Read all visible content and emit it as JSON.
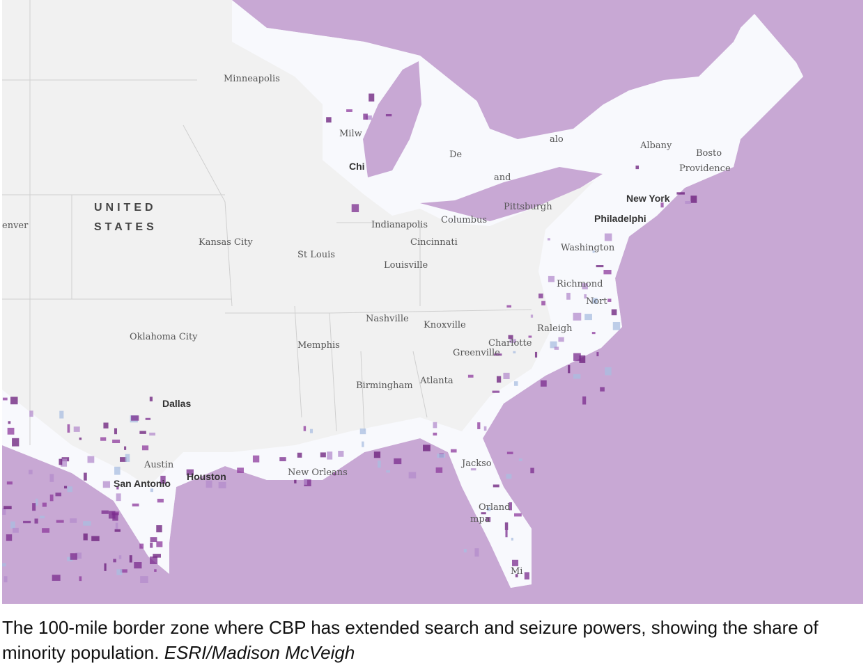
{
  "map": {
    "country": [
      "UNITED",
      "STATES"
    ],
    "cities": [
      "enver",
      "Minneapolis",
      "Milw",
      "Chi",
      "De",
      "alo",
      "and",
      "Albany",
      "Bosto",
      "Providence",
      "New York",
      "Philadelphi",
      "Pittsburgh",
      "Columbus",
      "Indianapolis",
      "Cincinnati",
      "Kansas City",
      "St Louis",
      "Louisville",
      "Washington",
      "Richmond",
      "Nort",
      "Raleigh",
      "Nashville",
      "Knoxville",
      "Charlotte",
      "Greenville",
      "Memphis",
      "Oklahoma City",
      "Birmingham",
      "Atlanta",
      "Dallas",
      "Austin",
      "San Antonio",
      "Houston",
      "New Orleans",
      "Jackso",
      "Orland",
      "mpa",
      "Mi"
    ]
  },
  "caption": {
    "text": "The 100-mile border zone where CBP has extended search and seizure powers, showing the share of minority population.",
    "credit": "ESRI/Madison McVeigh"
  }
}
